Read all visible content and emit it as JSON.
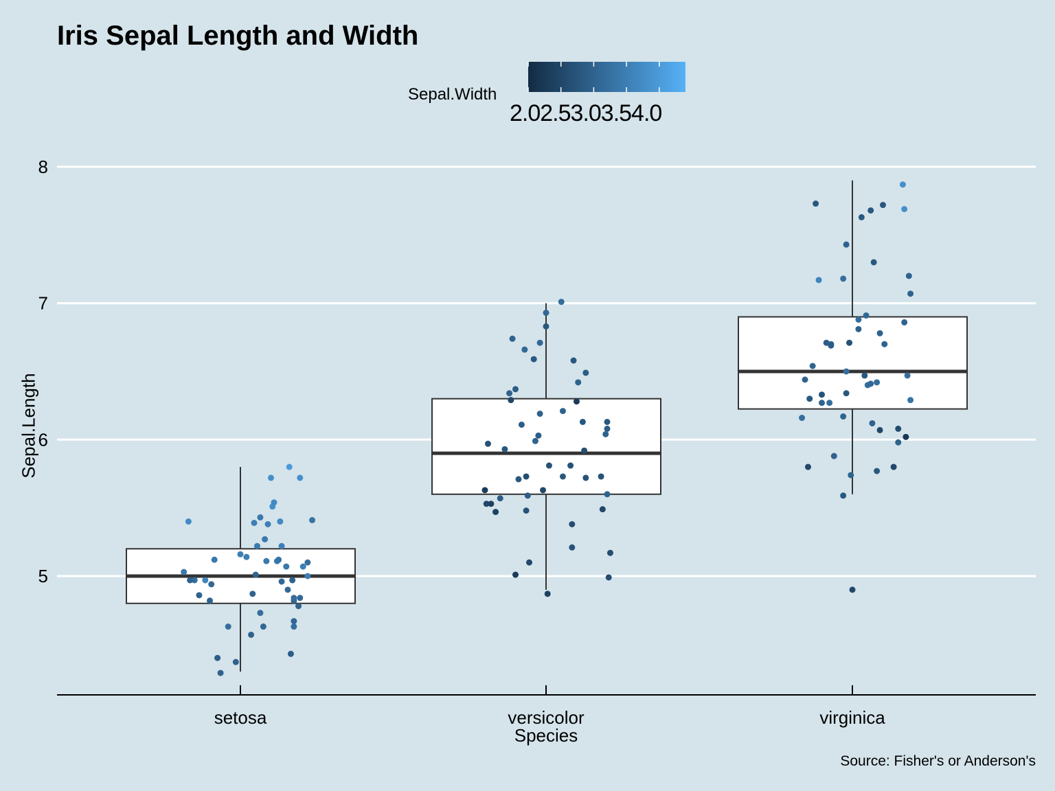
{
  "title": "Iris Sepal Length and Width",
  "caption": "Source: Fisher's or Anderson's",
  "legend": {
    "title": "Sepal.Width",
    "ticks": [
      2.0,
      2.5,
      3.0,
      3.5,
      4.0
    ],
    "tick_labels_text": "2.02.53.03.54.0",
    "color_low": "#132b43",
    "color_high": "#56b1f7",
    "position": "top"
  },
  "colors": {
    "background": "#d5e4eb",
    "gridline": "#ffffff",
    "box_fill": "#ffffff",
    "box_stroke": "#333333"
  },
  "chart_data": {
    "type": "boxplot with jittered points",
    "title": "Iris Sepal Length and Width",
    "xlabel": "Species",
    "ylabel": "Sepal.Length",
    "categories": [
      "setosa",
      "versicolor",
      "virginica"
    ],
    "y_ticks": [
      5,
      6,
      7,
      8
    ],
    "ylim": [
      4.15,
      8.15
    ],
    "grid": "horizontal major only",
    "boxes": [
      {
        "category": "setosa",
        "min": 4.3,
        "q1": 4.8,
        "median": 5.0,
        "q3": 5.2,
        "max": 5.8
      },
      {
        "category": "versicolor",
        "min": 4.9,
        "q1": 5.6,
        "median": 5.9,
        "q3": 6.3,
        "max": 7.0
      },
      {
        "category": "virginica",
        "min": 5.6,
        "q1": 6.225,
        "median": 6.5,
        "q3": 6.9,
        "max": 7.9
      }
    ],
    "points": [
      {
        "category": "setosa",
        "jitter": [
          -0.37,
          -0.3,
          -0.34,
          -0.33,
          -0.27,
          -0.23,
          -0.2,
          -0.19,
          -0.15,
          -0.17,
          -0.13,
          -0.03,
          -0.08,
          0.0,
          0.04,
          0.08,
          0.11,
          0.1,
          0.13,
          0.07,
          0.15,
          0.09,
          0.13,
          0.16,
          0.18,
          0.21,
          0.17,
          0.24,
          0.27,
          0.2,
          0.31,
          0.22,
          0.27,
          0.26,
          0.34,
          0.33,
          0.35,
          0.35,
          0.3,
          0.35,
          0.38,
          0.41,
          0.47,
          0.44,
          0.44,
          0.35,
          0.39,
          0.32,
          0.39,
          0.25
        ],
        "y": [
          5.03,
          4.97,
          5.4,
          4.97,
          4.86,
          4.97,
          4.82,
          4.94,
          4.4,
          5.12,
          4.29,
          4.37,
          4.63,
          5.16,
          5.14,
          4.87,
          5.22,
          5.01,
          4.73,
          4.57,
          4.63,
          5.39,
          5.43,
          5.27,
          5.38,
          5.51,
          5.11,
          5.11,
          5.22,
          5.72,
          4.9,
          5.54,
          4.96,
          5.4,
          4.97,
          4.43,
          4.63,
          4.67,
          5.07,
          4.82,
          4.78,
          5.07,
          5.41,
          5.0,
          5.1,
          4.84,
          5.72,
          5.8,
          4.84,
          5.12
        ],
        "sepal_width": [
          3.4,
          3.2,
          3.7,
          3.0,
          3.0,
          3.6,
          3.0,
          3.1,
          2.9,
          3.4,
          3.0,
          3.0,
          3.2,
          3.5,
          3.5,
          3.0,
          3.4,
          3.0,
          3.2,
          3.0,
          3.1,
          3.5,
          3.4,
          3.4,
          3.5,
          3.8,
          3.4,
          3.4,
          3.5,
          3.8,
          3.1,
          3.7,
          3.1,
          3.7,
          3.0,
          2.9,
          3.2,
          3.1,
          3.4,
          3.0,
          3.0,
          3.5,
          3.3,
          3.5,
          3.2,
          3.2,
          3.8,
          4.0,
          3.1,
          3.3
        ]
      },
      {
        "category": "versicolor",
        "jitter": [
          -0.39,
          -0.4,
          -0.38,
          -0.36,
          -0.33,
          -0.3,
          -0.27,
          -0.24,
          -0.23,
          -0.2,
          -0.22,
          -0.2,
          -0.18,
          -0.16,
          -0.14,
          -0.13,
          -0.13,
          -0.12,
          -0.11,
          -0.07,
          -0.05,
          -0.04,
          -0.04,
          -0.02,
          -0.08,
          0.0,
          0.01,
          0.02,
          0.0,
          0.1,
          0.11,
          0.11,
          0.16,
          0.17,
          0.21,
          0.24,
          0.26,
          0.26,
          0.25,
          0.18,
          0.2,
          0.36,
          0.37,
          0.4,
          0.41,
          0.42,
          0.4,
          0.39,
          0.4,
          0.17
        ],
        "y": [
          5.53,
          5.63,
          5.97,
          5.53,
          5.47,
          5.57,
          5.93,
          6.34,
          6.29,
          6.37,
          6.74,
          5.01,
          5.71,
          6.11,
          6.66,
          5.73,
          5.48,
          5.59,
          5.1,
          5.99,
          6.03,
          6.71,
          6.19,
          5.63,
          6.59,
          6.83,
          4.87,
          5.81,
          6.93,
          7.01,
          5.73,
          6.21,
          5.81,
          5.38,
          6.42,
          6.13,
          5.72,
          6.49,
          5.92,
          6.58,
          6.28,
          5.73,
          5.49,
          6.13,
          4.99,
          5.17,
          6.08,
          6.04,
          5.6,
          5.21
        ],
        "sepal_width": [
          2.5,
          2.3,
          2.7,
          2.4,
          2.4,
          2.9,
          2.8,
          3.0,
          2.5,
          2.9,
          3.0,
          2.3,
          2.8,
          2.9,
          3.1,
          2.6,
          2.7,
          2.9,
          2.5,
          3.0,
          2.9,
          3.1,
          3.0,
          2.5,
          2.8,
          2.8,
          2.4,
          2.7,
          3.1,
          3.2,
          2.8,
          3.0,
          2.7,
          2.6,
          3.0,
          2.8,
          2.7,
          2.9,
          2.6,
          2.8,
          2.3,
          2.7,
          2.5,
          2.8,
          2.6,
          2.6,
          2.9,
          3.0,
          3.0,
          2.7
        ]
      },
      {
        "category": "virginica",
        "jitter": [
          -0.33,
          -0.29,
          -0.28,
          -0.31,
          -0.22,
          -0.26,
          -0.24,
          -0.2,
          -0.2,
          -0.17,
          -0.14,
          -0.15,
          -0.12,
          -0.14,
          -0.06,
          -0.04,
          -0.06,
          -0.04,
          -0.06,
          -0.04,
          -0.02,
          -0.01,
          0.0,
          0.04,
          0.06,
          0.04,
          0.08,
          0.1,
          0.09,
          0.12,
          0.14,
          0.12,
          0.13,
          0.16,
          0.16,
          0.2,
          0.18,
          0.21,
          0.18,
          0.27,
          0.3,
          0.3,
          0.34,
          0.38,
          0.34,
          0.33,
          0.36,
          0.38,
          0.37,
          0.35
        ],
        "y": [
          6.16,
          5.8,
          6.3,
          6.44,
          7.17,
          6.54,
          7.73,
          6.27,
          6.33,
          6.71,
          6.7,
          6.27,
          5.88,
          6.69,
          5.59,
          7.43,
          6.17,
          6.5,
          7.18,
          6.34,
          6.71,
          5.74,
          4.9,
          6.88,
          7.63,
          6.81,
          6.47,
          6.4,
          6.91,
          7.68,
          7.3,
          6.41,
          6.12,
          6.42,
          5.77,
          7.72,
          6.78,
          6.7,
          6.07,
          5.8,
          5.98,
          6.08,
          7.69,
          7.07,
          6.86,
          7.87,
          6.47,
          6.29,
          7.2,
          6.02
        ],
        "sepal_width": [
          3.2,
          2.5,
          2.8,
          3.0,
          3.6,
          3.0,
          2.8,
          3.0,
          2.7,
          2.9,
          3.0,
          3.2,
          3.0,
          2.9,
          2.8,
          3.0,
          3.0,
          3.2,
          3.2,
          2.8,
          2.7,
          3.0,
          2.5,
          3.2,
          2.8,
          3.0,
          2.8,
          3.2,
          3.1,
          2.8,
          2.8,
          3.1,
          3.0,
          3.2,
          2.8,
          2.8,
          3.0,
          3.0,
          2.5,
          2.5,
          3.0,
          2.6,
          3.8,
          3.0,
          3.0,
          3.8,
          3.2,
          3.3,
          3.0,
          2.2
        ]
      }
    ]
  }
}
